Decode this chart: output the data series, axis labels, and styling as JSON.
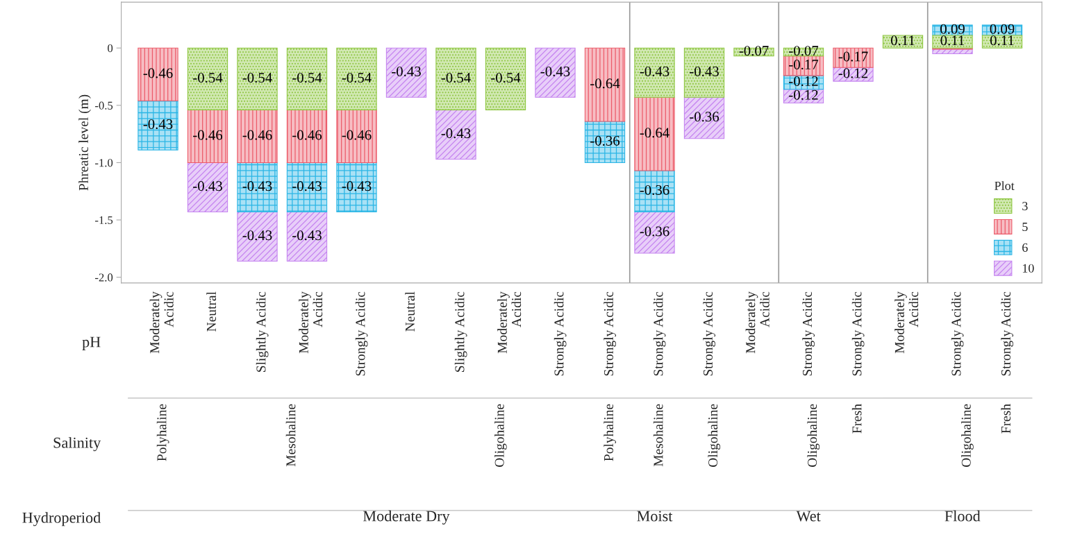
{
  "chart_data": {
    "type": "bar",
    "stacked": true,
    "ylabel": "Phreatic level (m)",
    "legend_title": "Plot",
    "legend": "lower right",
    "grid": false,
    "categories": [
      "Moderately\nAcidic",
      "Neutral",
      "Slightly Acidic",
      "Moderately\nAcidic",
      "Strongly Acidic",
      "Neutral",
      "Slightly Acidic",
      "Moderately\nAcidic",
      "Strongly Acidic",
      "Strongly Acidic",
      "Strongly Acidic",
      "Strongly Acidic",
      "Moderately\nAcidic",
      "Strongly Acidic",
      "Strongly Acidic",
      "Moderately\nAcidic",
      "Strongly Acidic",
      "Strongly Acidic"
    ],
    "ylim": [
      -2.05,
      0.4
    ],
    "yticks": [
      {
        "value": -2.0,
        "label": "-2.0"
      },
      {
        "value": -1.5,
        "label": "-1.5"
      },
      {
        "value": -1.0,
        "label": "-1.0"
      },
      {
        "value": -0.5,
        "label": "-0.5"
      },
      0
    ],
    "series": [
      {
        "name": "3",
        "color": "#8dc63f",
        "values": [
          null,
          -0.54,
          -0.54,
          -0.54,
          -0.54,
          null,
          -0.54,
          -0.54,
          null,
          null,
          -0.43,
          -0.43,
          -0.07,
          -0.07,
          null,
          0.11,
          0.11,
          0.11
        ],
        "value_labels": [
          null,
          "-0.54",
          "-0.54",
          "-0.54",
          "-0.54",
          null,
          "-0.54",
          "-0.54",
          null,
          null,
          "-0.43",
          "-0.43",
          "-0.07",
          "-0.07",
          null,
          "0.11",
          "0.11",
          "0.11"
        ]
      },
      {
        "name": "5",
        "color": "#ec5b6a",
        "values": [
          -0.46,
          -0.46,
          -0.46,
          -0.46,
          -0.46,
          null,
          null,
          null,
          null,
          -0.64,
          -0.64,
          null,
          null,
          -0.17,
          -0.17,
          null,
          -0.01,
          null
        ],
        "value_labels": [
          "-0.46",
          "-0.46",
          "-0.46",
          "-0.46",
          "-0.46",
          null,
          null,
          null,
          null,
          "-0.64",
          "-0.64",
          null,
          null,
          "-0.17",
          "-0.17",
          null,
          null,
          null
        ]
      },
      {
        "name": "6",
        "color": "#29b5e5",
        "values": [
          -0.43,
          null,
          -0.43,
          -0.43,
          -0.43,
          null,
          null,
          null,
          null,
          -0.36,
          -0.36,
          null,
          null,
          -0.12,
          null,
          null,
          0.09,
          0.09
        ],
        "value_labels": [
          "-0.43",
          null,
          "-0.43",
          "-0.43",
          "-0.43",
          null,
          null,
          null,
          null,
          "-0.36",
          "-0.36",
          null,
          null,
          "-0.12",
          null,
          null,
          "0.09",
          "0.09"
        ]
      },
      {
        "name": "10",
        "color": "#c584f0",
        "values": [
          null,
          -0.43,
          -0.43,
          -0.43,
          null,
          -0.43,
          -0.43,
          null,
          -0.43,
          null,
          -0.36,
          -0.36,
          null,
          -0.12,
          -0.12,
          null,
          -0.04,
          null
        ],
        "value_labels": [
          null,
          "-0.43",
          "-0.43",
          "-0.43",
          null,
          "-0.43",
          "-0.43",
          null,
          "-0.43",
          null,
          "-0.36",
          "-0.36",
          null,
          "-0.12",
          "-0.12",
          null,
          null,
          null
        ]
      }
    ],
    "annotations": [
      "pH",
      "Salinity",
      "Hydroperiod",
      "Polyhaline",
      "Mesohaline",
      "Oligohaline",
      "Polyhaline",
      "Mesohaline",
      "Oligohaline",
      "Oligohaline",
      "Fresh",
      "Oligohaline",
      "Fresh",
      "Moderate Dry",
      "Moist",
      "Wet",
      "Flood"
    ]
  }
}
